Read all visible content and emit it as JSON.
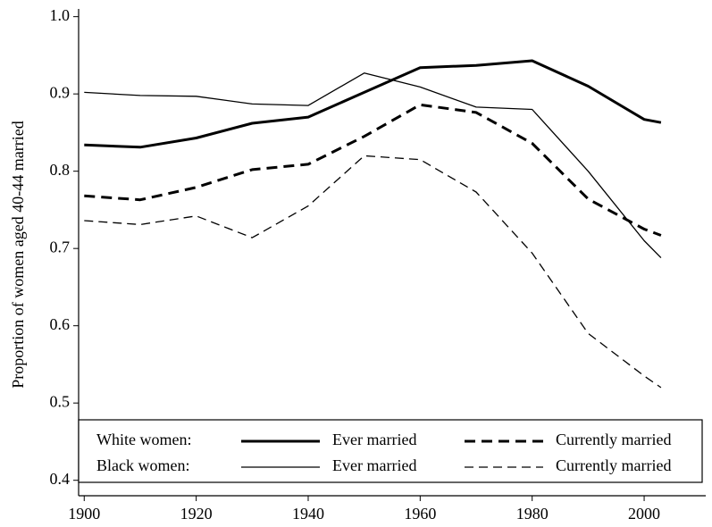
{
  "chart_data": {
    "type": "line",
    "y_label": "Proportion of women aged 40-44 married",
    "x": [
      1900,
      1910,
      1920,
      1930,
      1940,
      1950,
      1960,
      1970,
      1980,
      1990,
      2000,
      2003
    ],
    "xlim": [
      1899,
      2011
    ],
    "xticks": [
      1900,
      1920,
      1940,
      1960,
      1980,
      2000
    ],
    "ylim": [
      0.38,
      1.01
    ],
    "yticks": [
      0.4,
      0.5,
      0.6,
      0.7,
      0.8,
      0.9,
      {
        "value": 1,
        "label": "1.0"
      }
    ],
    "legend_position": "bottom",
    "groups": [
      {
        "label": "White women:",
        "series": [
          {
            "name": "Ever married",
            "color": "#000000",
            "width": 3,
            "dash": "none",
            "values": [
              0.834,
              0.831,
              0.843,
              0.862,
              0.87,
              0.902,
              0.934,
              0.937,
              0.943,
              0.91,
              0.867,
              0.863
            ]
          },
          {
            "name": "Currently married",
            "color": "#000000",
            "width": 3,
            "dash": "12 7",
            "values": [
              0.768,
              0.763,
              0.779,
              0.802,
              0.809,
              0.845,
              0.886,
              0.876,
              0.836,
              0.764,
              0.725,
              0.717
            ]
          }
        ]
      },
      {
        "label": "Black women:",
        "series": [
          {
            "name": "Ever married",
            "color": "#000000",
            "width": 1.3,
            "dash": "none",
            "values": [
              0.902,
              0.898,
              0.897,
              0.887,
              0.885,
              0.927,
              0.909,
              0.883,
              0.88,
              0.8,
              0.71,
              0.688
            ]
          },
          {
            "name": "Currently married",
            "color": "#000000",
            "width": 1.3,
            "dash": "10 6",
            "values": [
              0.736,
              0.731,
              0.742,
              0.714,
              0.755,
              0.82,
              0.815,
              0.773,
              0.694,
              0.59,
              0.535,
              0.52
            ]
          }
        ]
      }
    ]
  }
}
